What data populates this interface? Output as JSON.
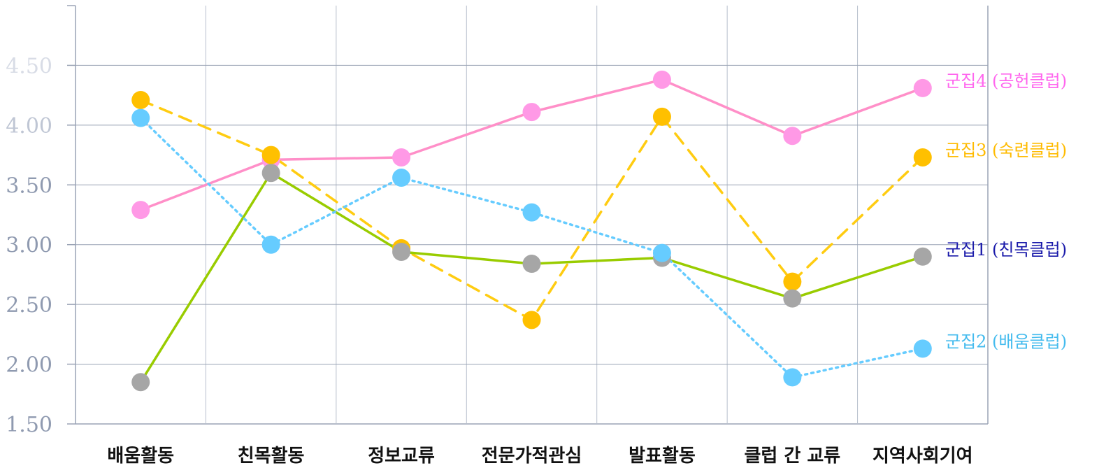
{
  "chart_data": {
    "type": "line",
    "categories": [
      "배움활동",
      "친목활동",
      "정보교류",
      "전문가적관심",
      "발표활동",
      "클럽 간 교류",
      "지역사회기여"
    ],
    "ylim": [
      1.5,
      5.0
    ],
    "yticks": [
      "1.50",
      "2.00",
      "2.50",
      "3.00",
      "3.50",
      "4.00",
      "4.50"
    ],
    "grid": true,
    "series": [
      {
        "name": "군집4 (공헌클럽)",
        "color": "#ff8fc8",
        "marker": "#ff99e6",
        "label_color": "#ff66ee",
        "dash": "",
        "values": [
          3.29,
          3.71,
          3.73,
          4.11,
          4.38,
          3.91,
          4.31
        ]
      },
      {
        "name": "군집3 (숙련클럽)",
        "color": "#ffcc11",
        "marker": "#ffc000",
        "label_color": "#ffbb00",
        "dash": "18 12",
        "values": [
          4.21,
          3.75,
          2.97,
          2.37,
          4.07,
          2.69,
          3.73
        ]
      },
      {
        "name": "군집1 (친목클럽)",
        "color": "#99cc00",
        "marker": "#a6a6a6",
        "label_color": "#1a1aaa",
        "dash": "",
        "values": [
          1.85,
          3.6,
          2.94,
          2.84,
          2.89,
          2.55,
          2.9
        ]
      },
      {
        "name": "군집2 (배움클럽)",
        "color": "#66ccff",
        "marker": "#66ccff",
        "label_color": "#44bbee",
        "dash": "3 6",
        "values": [
          4.06,
          3.0,
          3.56,
          3.27,
          2.93,
          1.89,
          2.13
        ]
      }
    ]
  }
}
